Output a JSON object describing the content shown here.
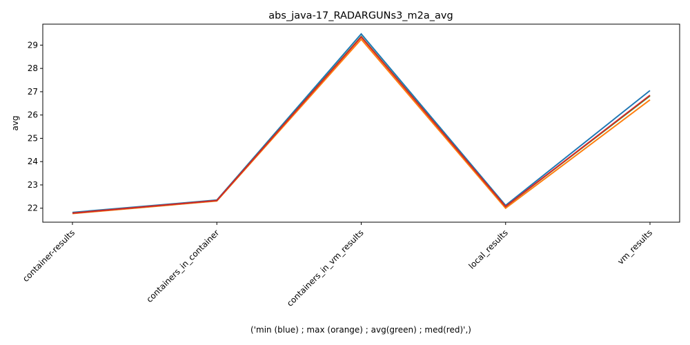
{
  "chart_data": {
    "type": "line",
    "title": "abs_java-17_RADARGUNs3_m2a_avg",
    "xlabel": "('min (blue) ; max (orange) ; avg(green) ; med(red)',)",
    "ylabel": "avg",
    "categories": [
      "container-results",
      "containers_in_container",
      "containers_in_vm_results",
      "local_results",
      "vm_results"
    ],
    "yticks": [
      22,
      23,
      24,
      25,
      26,
      27,
      28,
      29
    ],
    "ylim": [
      21.4,
      29.9
    ],
    "grid": false,
    "series": [
      {
        "color": "#1f77b4",
        "values": [
          21.82,
          22.35,
          29.48,
          22.12,
          27.05
        ]
      },
      {
        "color": "#ff7f0e",
        "values": [
          21.77,
          22.31,
          29.25,
          22.0,
          26.65
        ]
      },
      {
        "color": "#2ca02c",
        "values": [
          21.79,
          22.33,
          29.37,
          22.07,
          26.82
        ]
      },
      {
        "color": "#d62728",
        "values": [
          21.79,
          22.33,
          29.35,
          22.07,
          26.85
        ]
      }
    ]
  }
}
